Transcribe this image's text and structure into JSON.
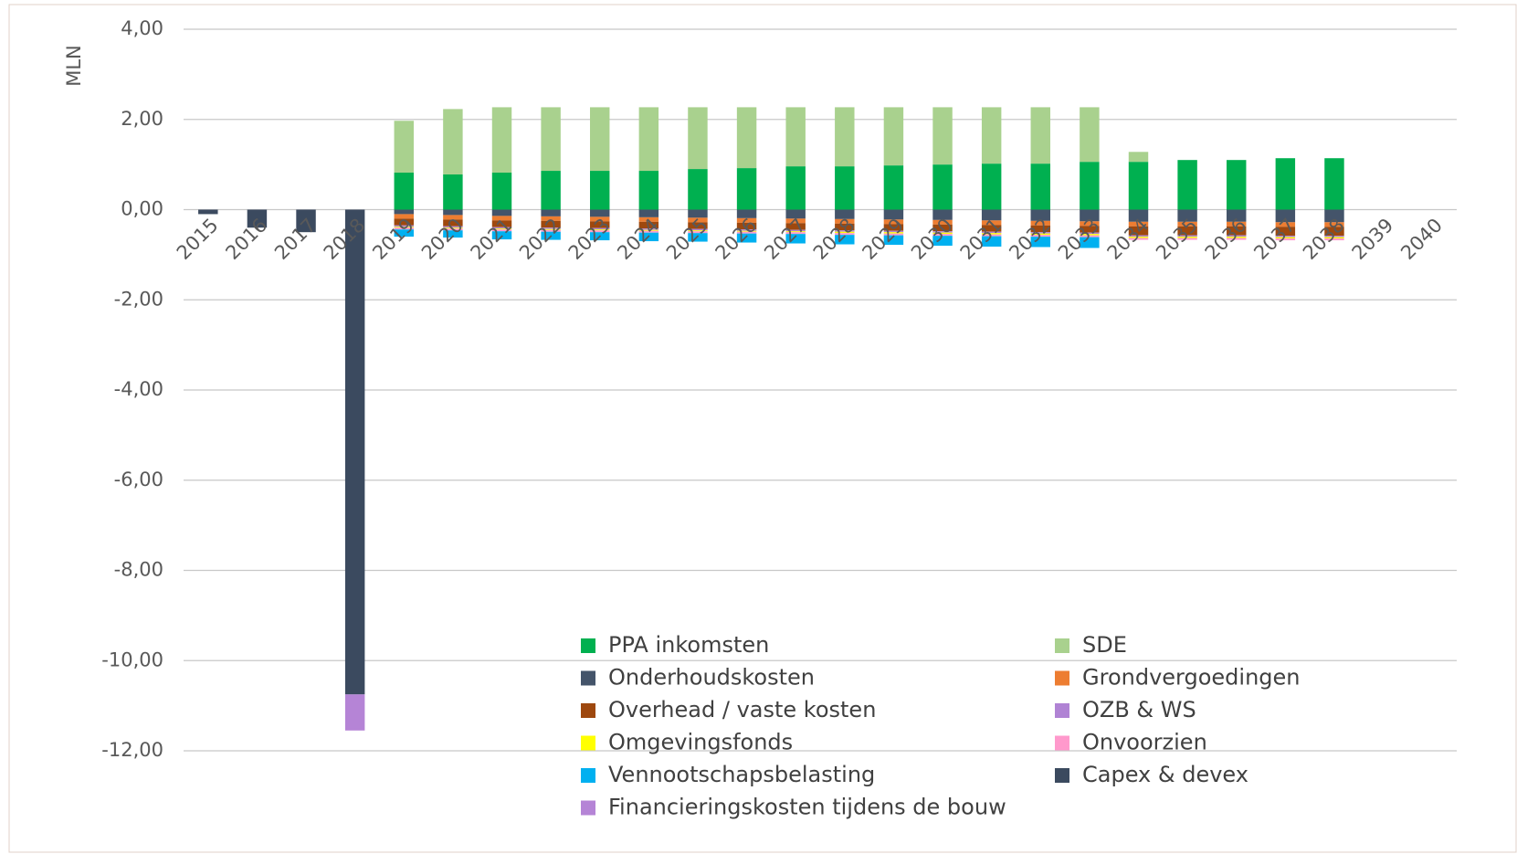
{
  "chart_data": {
    "type": "bar",
    "stacked": true,
    "y_label": "MLN",
    "categories": [
      "2015",
      "2016",
      "2017",
      "2018",
      "2019",
      "2020",
      "2021",
      "2022",
      "2023",
      "2024",
      "2025",
      "2026",
      "2027",
      "2028",
      "2029",
      "2030",
      "2031",
      "2032",
      "2033",
      "2034",
      "2035",
      "2036",
      "2037",
      "2038",
      "2039",
      "2040"
    ],
    "ylim": [
      -12,
      4
    ],
    "yticks": [
      {
        "value": 4,
        "label": "4,00"
      },
      {
        "value": 2,
        "label": "2,00"
      },
      {
        "value": 0,
        "label": "0,00"
      },
      {
        "value": -2,
        "label": "-2,00"
      },
      {
        "value": -4,
        "label": "-4,00"
      },
      {
        "value": -6,
        "label": "-6,00"
      },
      {
        "value": -8,
        "label": "-8,00"
      },
      {
        "value": -10,
        "label": "-10,00"
      },
      {
        "value": -12,
        "label": "-12,00"
      }
    ],
    "grid": true,
    "series": [
      {
        "name": "PPA inkomsten",
        "color": "#00b050",
        "values": [
          0,
          0,
          0,
          0,
          0.82,
          0.78,
          0.82,
          0.86,
          0.86,
          0.86,
          0.9,
          0.92,
          0.96,
          0.96,
          0.98,
          1.0,
          1.02,
          1.02,
          1.06,
          1.06,
          1.1,
          1.1,
          1.14,
          1.14,
          0,
          0
        ]
      },
      {
        "name": "SDE",
        "color": "#a9d18e",
        "values": [
          0,
          0,
          0,
          0,
          1.15,
          1.45,
          1.45,
          1.41,
          1.41,
          1.41,
          1.37,
          1.35,
          1.31,
          1.31,
          1.29,
          1.27,
          1.25,
          1.25,
          1.21,
          0.22,
          0,
          0,
          0,
          0,
          0,
          0
        ]
      },
      {
        "name": "Onderhoudskosten",
        "color": "#44546a",
        "values": [
          0,
          0,
          0,
          0,
          -0.1,
          -0.12,
          -0.14,
          -0.15,
          -0.16,
          -0.17,
          -0.18,
          -0.19,
          -0.2,
          -0.21,
          -0.22,
          -0.23,
          -0.24,
          -0.25,
          -0.26,
          -0.27,
          -0.27,
          -0.27,
          -0.28,
          -0.28,
          0,
          0
        ]
      },
      {
        "name": "Grondvergoedingen",
        "color": "#ed7d31",
        "values": [
          0,
          0,
          0,
          0,
          -0.1,
          -0.1,
          -0.1,
          -0.1,
          -0.1,
          -0.1,
          -0.1,
          -0.1,
          -0.1,
          -0.1,
          -0.1,
          -0.1,
          -0.1,
          -0.1,
          -0.1,
          -0.1,
          -0.1,
          -0.1,
          -0.1,
          -0.1,
          0,
          0
        ]
      },
      {
        "name": "Overhead / vaste kosten",
        "color": "#9e480e",
        "values": [
          0,
          0,
          0,
          0,
          -0.15,
          -0.15,
          -0.15,
          -0.15,
          -0.15,
          -0.15,
          -0.15,
          -0.15,
          -0.15,
          -0.15,
          -0.15,
          -0.15,
          -0.15,
          -0.15,
          -0.15,
          -0.2,
          -0.2,
          -0.2,
          -0.2,
          -0.2,
          0,
          0
        ]
      },
      {
        "name": "OZB & WS",
        "color": "#b083d4",
        "values": [
          0,
          0,
          0,
          0,
          -0.03,
          -0.03,
          -0.03,
          -0.03,
          -0.03,
          -0.03,
          -0.03,
          -0.03,
          -0.03,
          -0.03,
          -0.03,
          -0.03,
          -0.03,
          -0.03,
          -0.03,
          -0.03,
          -0.03,
          -0.03,
          -0.03,
          -0.03,
          0,
          0
        ]
      },
      {
        "name": "Omgevingsfonds",
        "color": "#ffff00",
        "values": [
          0,
          0,
          0,
          0,
          -0.02,
          -0.02,
          -0.02,
          -0.02,
          -0.02,
          -0.02,
          -0.02,
          -0.02,
          -0.02,
          -0.03,
          -0.03,
          -0.03,
          -0.03,
          -0.03,
          -0.03,
          -0.03,
          -0.03,
          -0.03,
          -0.03,
          -0.03,
          0,
          0
        ]
      },
      {
        "name": "Onvoorzien",
        "color": "#ff99cc",
        "values": [
          0,
          0,
          0,
          0,
          -0.04,
          -0.04,
          -0.04,
          -0.04,
          -0.04,
          -0.04,
          -0.04,
          -0.04,
          -0.04,
          -0.04,
          -0.04,
          -0.04,
          -0.04,
          -0.04,
          -0.04,
          -0.04,
          -0.04,
          -0.04,
          -0.04,
          -0.04,
          0,
          0
        ]
      },
      {
        "name": "Vennootschapsbelasting",
        "color": "#00b0f0",
        "values": [
          0,
          0,
          0,
          0,
          -0.16,
          -0.16,
          -0.18,
          -0.18,
          -0.18,
          -0.19,
          -0.19,
          -0.2,
          -0.21,
          -0.21,
          -0.21,
          -0.22,
          -0.23,
          -0.23,
          -0.24,
          0,
          0,
          0,
          0,
          0,
          0,
          0
        ]
      },
      {
        "name": "Capex & devex",
        "color": "#3b4a5f",
        "values": [
          -0.1,
          -0.4,
          -0.5,
          -10.75,
          0,
          0,
          0,
          0,
          0,
          0,
          0,
          0,
          0,
          0,
          0,
          0,
          0,
          0,
          0,
          0,
          0,
          0,
          0,
          0,
          0,
          0
        ]
      },
      {
        "name": "Financieringskosten tijdens de bouw",
        "color": "#b584d6",
        "values": [
          0,
          0,
          0,
          -0.8,
          0,
          0,
          0,
          0,
          0,
          0,
          0,
          0,
          0,
          0,
          0,
          0,
          0,
          0,
          0,
          0,
          0,
          0,
          0,
          0,
          0,
          0
        ]
      }
    ]
  }
}
